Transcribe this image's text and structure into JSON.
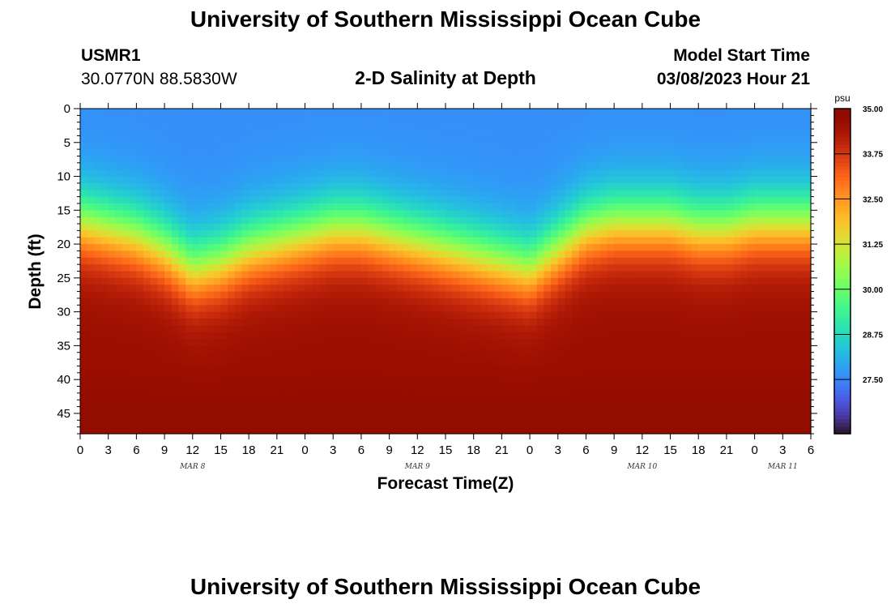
{
  "page": {
    "title": "University of Southern Mississippi Ocean Cube",
    "footer_title": "University of Southern Mississippi Ocean Cube",
    "station_id": "USMR1",
    "station_coords": "30.0770N  88.5830W",
    "subtitle": "2-D Salinity at Depth",
    "model_start_label": "Model Start Time",
    "model_start_value": "03/08/2023 Hour 21"
  },
  "chart_data": {
    "type": "heatmap",
    "title": "2-D Salinity at Depth",
    "xlabel": "Forecast Time(Z)",
    "ylabel": "Depth (ft)",
    "y_unit": "ft",
    "y_range": [
      0,
      48
    ],
    "y_ticks": [
      "0",
      "5",
      "10",
      "15",
      "20",
      "25",
      "30",
      "35",
      "40",
      "45"
    ],
    "x_range_hours": [
      0,
      78
    ],
    "x_ticks": [
      "0",
      "3",
      "6",
      "9",
      "12",
      "15",
      "18",
      "21",
      "0",
      "3",
      "6",
      "9",
      "12",
      "15",
      "18",
      "21",
      "0",
      "3",
      "6",
      "9",
      "12",
      "15",
      "18",
      "21",
      "0",
      "3",
      "6"
    ],
    "date_labels": [
      {
        "text": "MAR 8",
        "hour": 12
      },
      {
        "text": "MAR 9",
        "hour": 36
      },
      {
        "text": "MAR 10",
        "hour": 60
      },
      {
        "text": "MAR 11",
        "hour": 75
      }
    ],
    "colorbar": {
      "unit": "psu",
      "min": 26.0,
      "max": 35.0,
      "tick_labels": [
        "35.00",
        "33.75",
        "32.50",
        "31.25",
        "30.00",
        "28.75",
        "27.50"
      ],
      "tick_values": [
        35.0,
        33.75,
        32.5,
        31.25,
        30.0,
        28.75,
        27.5
      ],
      "colormap": "turbo"
    },
    "halocline_depth_ft": {
      "hours": [
        0,
        3,
        6,
        9,
        12,
        15,
        18,
        21,
        24,
        27,
        30,
        33,
        36,
        39,
        42,
        45,
        48,
        51,
        54,
        57,
        60,
        63,
        66,
        69,
        72,
        75,
        78
      ],
      "values": [
        17,
        18,
        19,
        21,
        24,
        23,
        21,
        20,
        19,
        18,
        18,
        19,
        20,
        21,
        22,
        23,
        24,
        21,
        18,
        17,
        17,
        17,
        18,
        18,
        17,
        17,
        17
      ]
    },
    "surface_salinity_psu": 27.6,
    "bottom_salinity_psu": 34.6
  }
}
